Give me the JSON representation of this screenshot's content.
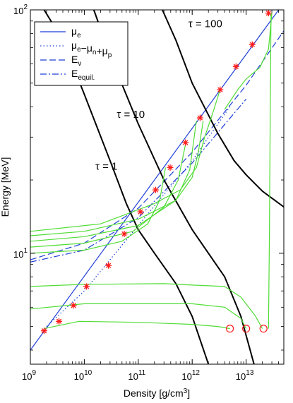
{
  "chart_data": {
    "type": "line",
    "title": "",
    "xlabel": "Density [g/cm³]",
    "ylabel": "Energy [MeV]",
    "xscale": "log",
    "yscale": "log",
    "xlim": [
      1000000000.0,
      50000000000000.0
    ],
    "ylim": [
      3.5,
      100
    ],
    "xticks": [
      {
        "value": 1000000000.0,
        "label": "10",
        "sup": "9"
      },
      {
        "value": 10000000000.0,
        "label": "10",
        "sup": "10"
      },
      {
        "value": 100000000000.0,
        "label": "10",
        "sup": "11"
      },
      {
        "value": 1000000000000.0,
        "label": "10",
        "sup": "12"
      },
      {
        "value": 10000000000000.0,
        "label": "10",
        "sup": "13"
      }
    ],
    "yticks": [
      {
        "value": 10,
        "label": "10",
        "sup": "1"
      },
      {
        "value": 100,
        "label": "10",
        "sup": "2"
      }
    ],
    "legend": {
      "placement": "top-left",
      "entries": [
        {
          "text": "μ",
          "sub": "e",
          "style": "solid",
          "color": "#1f3fd6"
        },
        {
          "text": "μ",
          "sub": "e",
          "text2": "−μ",
          "sub2": "n",
          "text3": "+μ",
          "sub3": "p",
          "style": "dotted",
          "color": "#1f3fd6"
        },
        {
          "text": "E",
          "sub": "ν",
          "style": "dashed",
          "color": "#1f3fd6"
        },
        {
          "text": "E",
          "sub": "equil.",
          "style": "dashdot",
          "color": "#1f3fd6"
        }
      ]
    },
    "annotations": [
      {
        "text": "τ = 1",
        "x": 16000000000.0,
        "y": 22
      },
      {
        "text": "τ = 10",
        "x": 40000000000.0,
        "y": 36
      },
      {
        "text": "τ = 100",
        "x": 850000000000.0,
        "y": 85
      }
    ],
    "series": [
      {
        "role": "mu_e",
        "style": "solid",
        "color": "#1f3fd6",
        "points": [
          [
            1000000000.0,
            4.0
          ],
          [
            50000000000000.0,
            107
          ]
        ]
      },
      {
        "role": "mu_e_minus_mu_n_plus_mu_p",
        "style": "dotted",
        "color": "#1f3fd6",
        "points": [
          [
            2000000000.0,
            5.0
          ],
          [
            10000000000.0,
            7.0
          ],
          [
            100000000000.0,
            13.0
          ],
          [
            1000000000000.0,
            24.0
          ],
          [
            5000000000000.0,
            40.0
          ]
        ]
      },
      {
        "role": "E_nu",
        "style": "dashed",
        "color": "#1f3fd6",
        "points": [
          [
            1000000000.0,
            9.4
          ],
          [
            10000000000.0,
            11.0
          ],
          [
            100000000000.0,
            15.3
          ],
          [
            1000000000000.0,
            26.0
          ],
          [
            10000000000000.0,
            49.0
          ],
          [
            50000000000000.0,
            82.0
          ]
        ]
      },
      {
        "role": "E_equil",
        "style": "dashdot",
        "color": "#1f3fd6",
        "points": [
          [
            1000000000.0,
            9.2
          ],
          [
            10000000000.0,
            10.3
          ],
          [
            100000000000.0,
            14.0
          ],
          [
            1000000000000.0,
            23.5
          ],
          [
            10000000000000.0,
            43.0
          ]
        ]
      },
      {
        "role": "tau_1",
        "style": "solid",
        "color": "#000000",
        "points": [
          [
            1800000000.0,
            100
          ],
          [
            4000000000.0,
            75
          ],
          [
            10000000000.0,
            45
          ],
          [
            30000000000.0,
            24
          ],
          [
            60000000000.0,
            16
          ],
          [
            100000000000.0,
            12.5
          ],
          [
            200000000000.0,
            10
          ],
          [
            500000000000.0,
            7.5
          ],
          [
            1000000000000.0,
            5.5
          ],
          [
            2000000000000.0,
            3.5
          ]
        ]
      },
      {
        "role": "tau_10",
        "style": "solid",
        "color": "#000000",
        "points": [
          [
            15000000000.0,
            100
          ],
          [
            30000000000.0,
            65
          ],
          [
            100000000000.0,
            34
          ],
          [
            300000000000.0,
            20
          ],
          [
            1000000000000.0,
            12.5
          ],
          [
            2000000000000.0,
            10
          ],
          [
            4000000000000.0,
            8
          ],
          [
            8000000000000.0,
            5.5
          ],
          [
            14000000000000.0,
            3.5
          ]
        ]
      },
      {
        "role": "tau_100",
        "style": "solid",
        "color": "#000000",
        "points": [
          [
            280000000000.0,
            100
          ],
          [
            500000000000.0,
            75
          ],
          [
            1000000000000.0,
            50
          ],
          [
            3000000000000.0,
            31
          ],
          [
            6000000000000.0,
            24
          ],
          [
            10000000000000.0,
            21
          ],
          [
            20000000000000.0,
            18
          ],
          [
            50000000000000.0,
            15.5
          ]
        ]
      },
      {
        "role": "cool_1",
        "style": "solid",
        "color": "#4fdc34",
        "points": [
          [
            1800000000.0,
            4.9
          ],
          [
            8000000000.0,
            5.25
          ],
          [
            100000000000.0,
            5.2
          ],
          [
            1000000000000.0,
            5.1
          ],
          [
            3000000000000.0,
            5.0
          ],
          [
            5000000000000.0,
            4.9
          ]
        ]
      },
      {
        "role": "cool_2",
        "style": "solid",
        "color": "#4fdc34",
        "points": [
          [
            1000000000.0,
            5.9
          ],
          [
            10000000000.0,
            6.2
          ],
          [
            1000000000000.0,
            6.2
          ],
          [
            4000000000000.0,
            6.0
          ],
          [
            8000000000000.0,
            5.4
          ],
          [
            10000000000000.0,
            4.9
          ]
        ]
      },
      {
        "role": "cool_3",
        "style": "solid",
        "color": "#4fdc34",
        "points": [
          [
            1000000000.0,
            7.3
          ],
          [
            10000000000.0,
            7.45
          ],
          [
            300000000000.0,
            7.5
          ],
          [
            1000000000000.0,
            7.4
          ],
          [
            4000000000000.0,
            7.3
          ],
          [
            8000000000000.0,
            6.6
          ],
          [
            15000000000000.0,
            5.5
          ],
          [
            20000000000000.0,
            4.9
          ]
        ]
      },
      {
        "role": "cool_4",
        "style": "solid",
        "color": "#4fdc34",
        "points": [
          [
            1000000000.0,
            10.0
          ],
          [
            10000000000.0,
            10.3
          ],
          [
            50000000000.0,
            11.2
          ],
          [
            150000000000.0,
            13.2
          ],
          [
            250000000000.0,
            16.5
          ],
          [
            320000000000.0,
            22.5
          ]
        ]
      },
      {
        "role": "cool_5",
        "style": "solid",
        "color": "#4fdc34",
        "points": [
          [
            1000000000.0,
            10.6
          ],
          [
            10000000000.0,
            11.0
          ],
          [
            80000000000.0,
            12.3
          ],
          [
            300000000000.0,
            15.5
          ],
          [
            550000000000.0,
            20
          ],
          [
            750000000000.0,
            28
          ]
        ]
      },
      {
        "role": "cool_6",
        "style": "solid",
        "color": "#4fdc34",
        "points": [
          [
            1000000000.0,
            11.2
          ],
          [
            10000000000.0,
            11.7
          ],
          [
            100000000000.0,
            13.0
          ],
          [
            500000000000.0,
            16.5
          ],
          [
            900000000000.0,
            22
          ],
          [
            1200000000000.0,
            35
          ]
        ]
      },
      {
        "role": "cool_7",
        "style": "solid",
        "color": "#4fdc34",
        "points": [
          [
            1000000000.0,
            11.8
          ],
          [
            10000000000.0,
            12.3
          ],
          [
            100000000000.0,
            13.8
          ],
          [
            500000000000.0,
            16.5
          ],
          [
            1000000000000.0,
            20.5
          ],
          [
            1300000000000.0,
            26
          ],
          [
            1600000000000.0,
            35
          ]
        ]
      },
      {
        "role": "cool_8",
        "style": "solid",
        "color": "#4fdc34",
        "points": [
          [
            1000000000.0,
            12.3
          ],
          [
            20000000000.0,
            13.2
          ],
          [
            200000000000.0,
            16
          ],
          [
            600000000000.0,
            18.2
          ],
          [
            1200000000000.0,
            22.5
          ],
          [
            1700000000000.0,
            30
          ],
          [
            2300000000000.0,
            36.5
          ],
          [
            3300000000000.0,
            47
          ]
        ]
      },
      {
        "role": "cool_9",
        "style": "solid",
        "color": "#4fdc34",
        "points": [
          [
            4000000000000.0,
            39
          ],
          [
            7000000000000.0,
            47
          ],
          [
            10000000000000.0,
            52
          ],
          [
            18000000000000.0,
            58
          ],
          [
            26000000000000.0,
            69
          ],
          [
            30000000000000.0,
            97
          ]
        ]
      },
      {
        "role": "cool_10",
        "style": "solid",
        "color": "#4fdc34",
        "points": [
          [
            26000000000000.0,
            4.9
          ],
          [
            27000000000000.0,
            12
          ],
          [
            28000000000000.0,
            40
          ],
          [
            29000000000000.0,
            97
          ]
        ]
      }
    ],
    "markers_star": [
      [
        1800000000.0,
        4.8
      ],
      [
        3400000000.0,
        5.25
      ],
      [
        6300000000.0,
        6.1
      ],
      [
        11000000000.0,
        7.3
      ],
      [
        28000000000.0,
        8.9
      ],
      [
        55000000000.0,
        12.0
      ],
      [
        110000000000.0,
        14.8
      ],
      [
        210000000000.0,
        18.2
      ],
      [
        390000000000.0,
        22.5
      ],
      [
        750000000000.0,
        28.5
      ],
      [
        1400000000000.0,
        36.0
      ],
      [
        3300000000000.0,
        47.0
      ],
      [
        6500000000000.0,
        58.5
      ],
      [
        13000000000000.0,
        72.0
      ],
      [
        26000000000000.0,
        97.0
      ]
    ],
    "markers_circle": [
      [
        5000000000000.0,
        4.9
      ],
      [
        10000000000000.0,
        4.9
      ],
      [
        21000000000000.0,
        4.9
      ]
    ]
  }
}
